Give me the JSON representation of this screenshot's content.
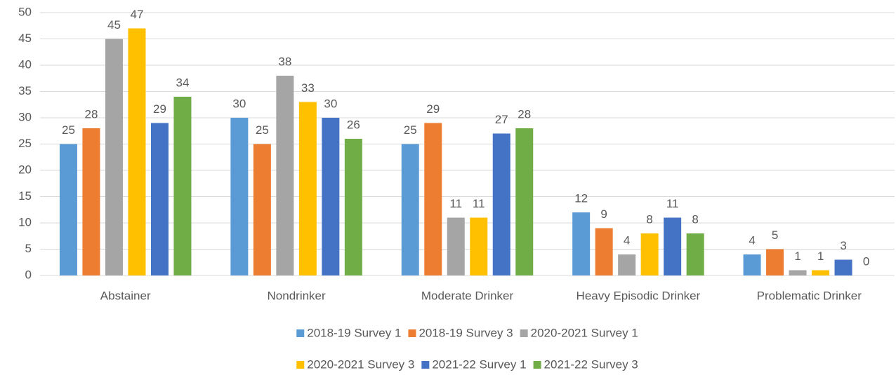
{
  "chart_data": {
    "type": "bar",
    "categories": [
      "Abstainer",
      "Nondrinker",
      "Moderate Drinker",
      "Heavy Episodic Drinker",
      "Problematic Drinker"
    ],
    "series": [
      {
        "name": "2018-19 Survey 1",
        "color": "#5b9bd5",
        "values": [
          25,
          30,
          25,
          12,
          4
        ]
      },
      {
        "name": "2018-19 Survey 3",
        "color": "#ed7d31",
        "values": [
          28,
          25,
          29,
          9,
          5
        ]
      },
      {
        "name": "2020-2021 Survey 1",
        "color": "#a5a5a5",
        "values": [
          45,
          38,
          11,
          4,
          1
        ]
      },
      {
        "name": "2020-2021 Survey 3",
        "color": "#ffc000",
        "values": [
          47,
          33,
          11,
          8,
          1
        ]
      },
      {
        "name": "2021-22 Survey 1",
        "color": "#4472c4",
        "values": [
          29,
          30,
          27,
          11,
          3
        ]
      },
      {
        "name": "2021-22 Survey 3",
        "color": "#70ad47",
        "values": [
          34,
          26,
          28,
          8,
          0
        ]
      }
    ],
    "ylim": [
      0,
      50
    ],
    "yticks": [
      0,
      5,
      10,
      15,
      20,
      25,
      30,
      35,
      40,
      45,
      50
    ],
    "grid": true,
    "legend": "bottom"
  }
}
